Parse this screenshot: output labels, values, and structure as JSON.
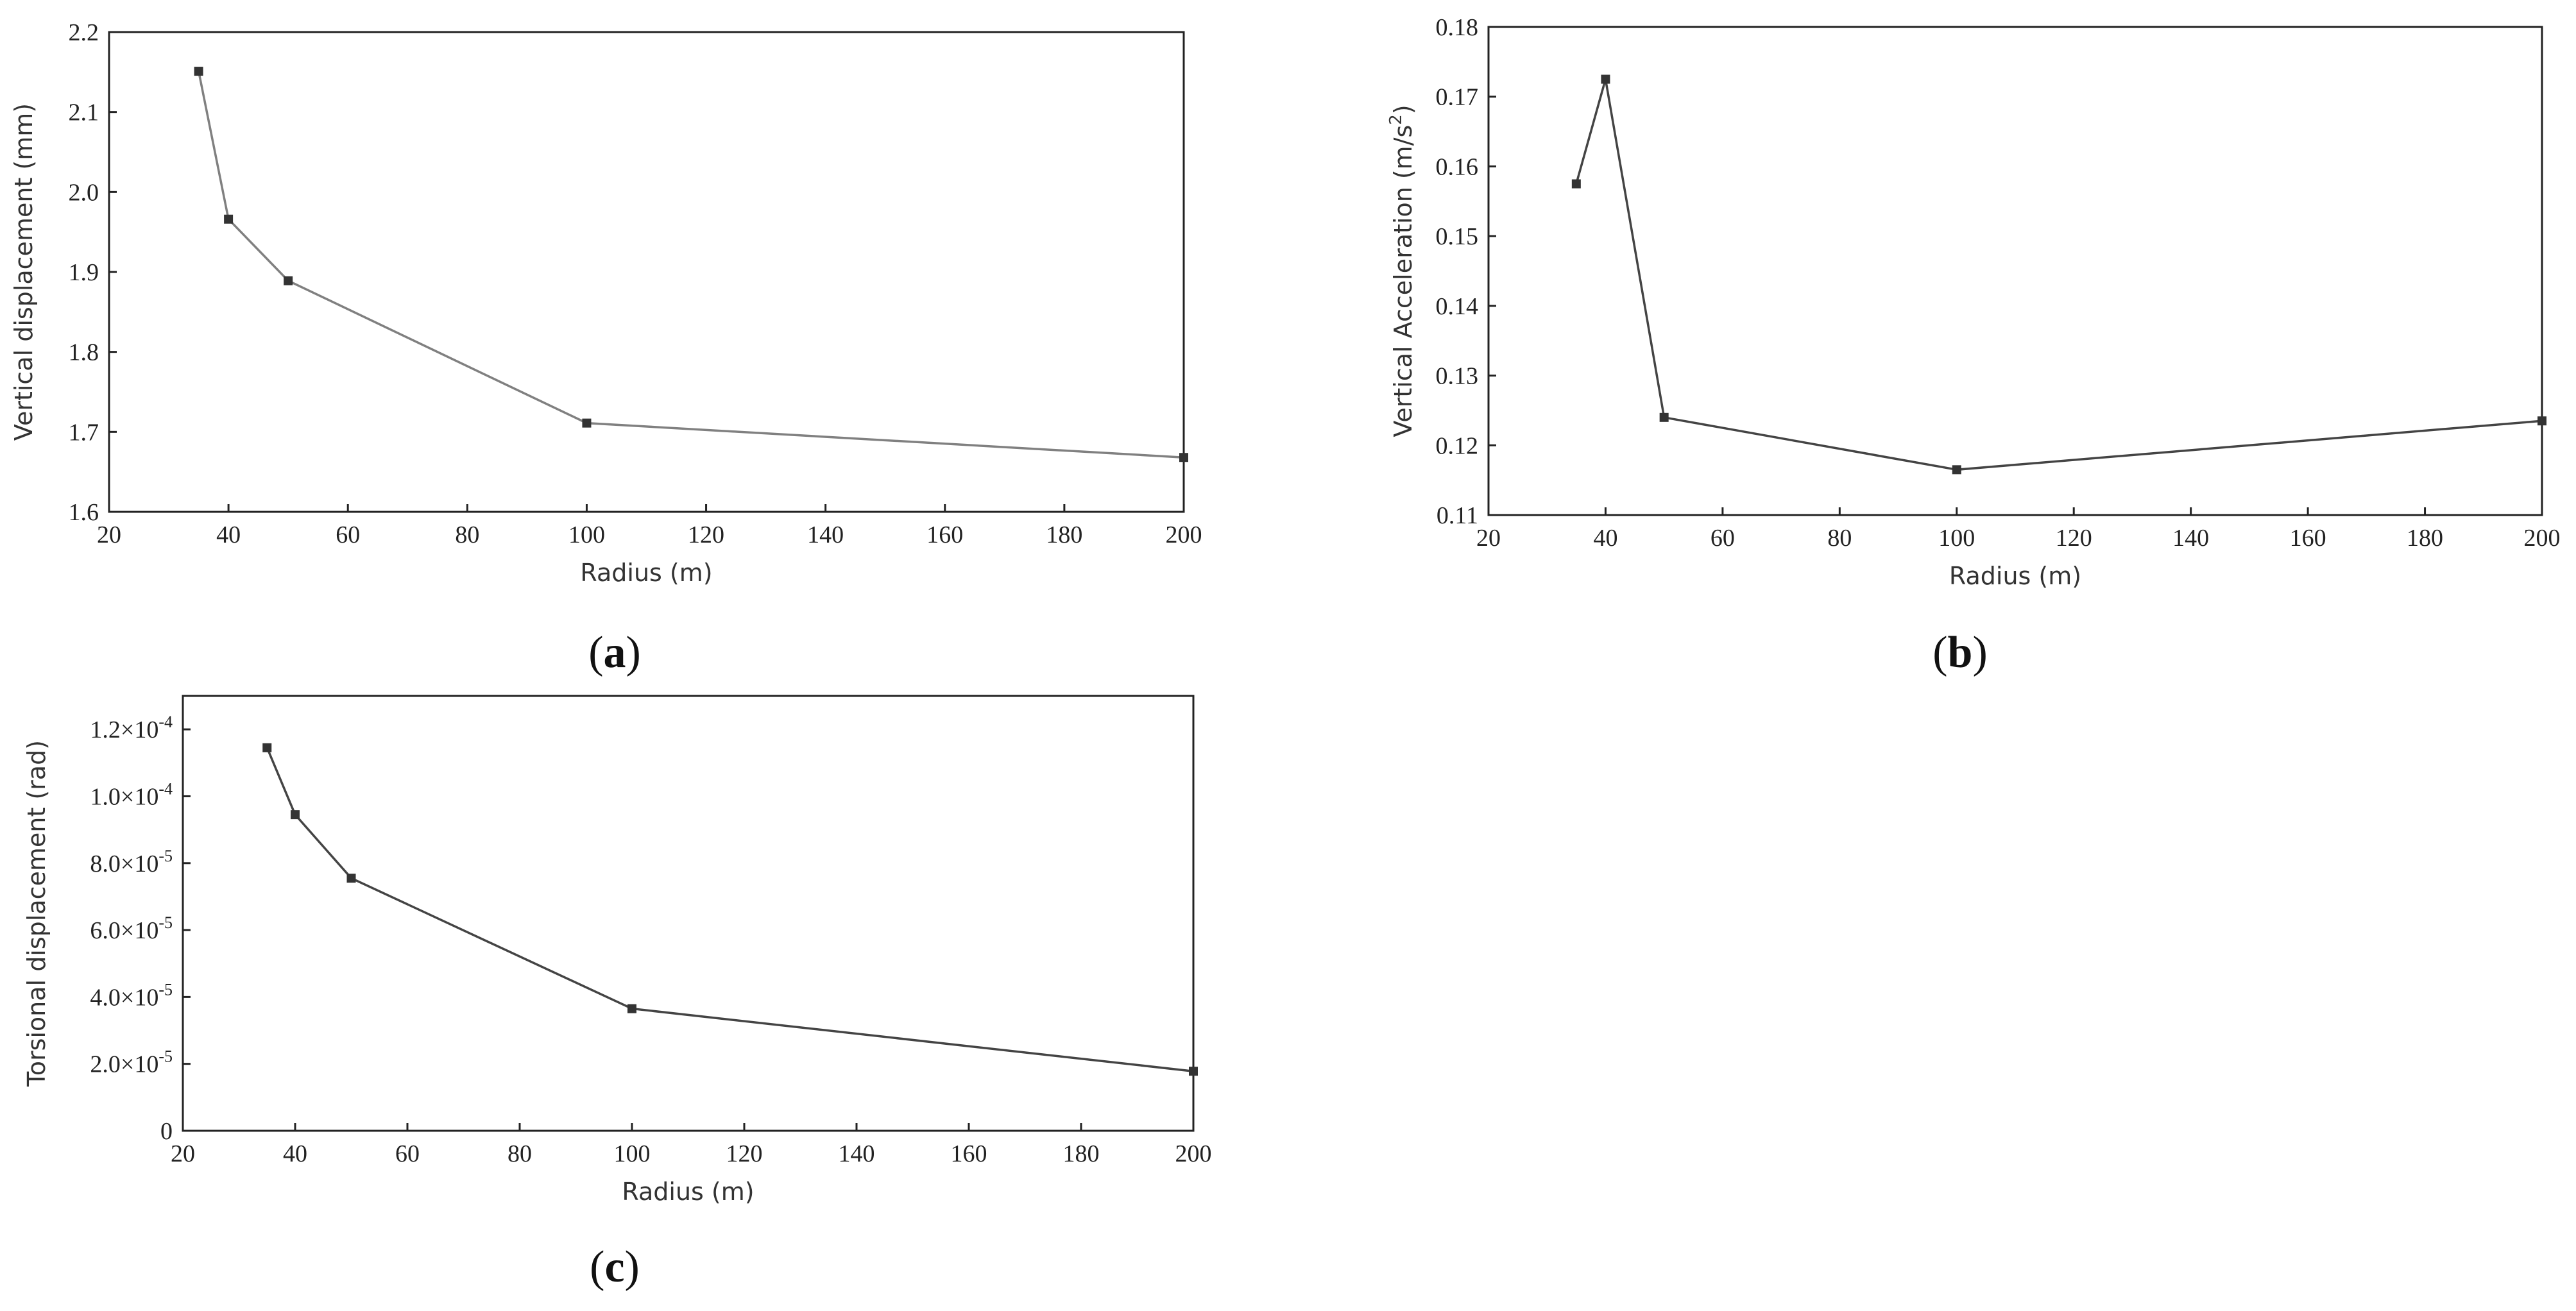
{
  "chart_data": [
    {
      "type": "line",
      "panel": "a",
      "caption_open": "(",
      "caption_letter": "a",
      "caption_close": ")",
      "xlabel": "Radius (m)",
      "ylabel": "Vertical displacement (mm)",
      "xlim": [
        20,
        200
      ],
      "ylim": [
        1.6,
        2.2
      ],
      "xticks": [
        "20",
        "40",
        "60",
        "80",
        "100",
        "120",
        "140",
        "160",
        "180",
        "200"
      ],
      "yticks": [
        "1.6",
        "1.7",
        "1.8",
        "1.9",
        "2.0",
        "2.1",
        "2.2"
      ],
      "series": [
        {
          "x": [
            35,
            40,
            50,
            100,
            200
          ],
          "values": [
            2.151,
            1.966,
            1.889,
            1.711,
            1.668
          ]
        }
      ],
      "line_color": "#808080",
      "marker_color": "#333333",
      "grid": false
    },
    {
      "type": "line",
      "panel": "b",
      "caption_open": "(",
      "caption_letter": "b",
      "caption_close": ")",
      "xlabel": "Radius (m)",
      "ylabel_main": "Vertical Acceleration (m/s",
      "ylabel_sup": "2",
      "ylabel_end": ")",
      "xlim": [
        20,
        200
      ],
      "ylim": [
        0.11,
        0.18
      ],
      "xticks": [
        "20",
        "40",
        "60",
        "80",
        "100",
        "120",
        "140",
        "160",
        "180",
        "200"
      ],
      "yticks": [
        "0.11",
        "0.12",
        "0.13",
        "0.14",
        "0.15",
        "0.16",
        "0.17",
        "0.18"
      ],
      "series": [
        {
          "x": [
            35,
            40,
            50,
            100,
            200
          ],
          "values": [
            0.1575,
            0.1725,
            0.124,
            0.1165,
            0.1235
          ]
        }
      ],
      "line_color": "#444444",
      "marker_color": "#333333",
      "grid": false
    },
    {
      "type": "line",
      "panel": "c",
      "caption_open": "(",
      "caption_letter": "c",
      "caption_close": ")",
      "xlabel": "Radius (m)",
      "ylabel": "Torsional displacement (rad)",
      "xlim": [
        20,
        200
      ],
      "ylim": [
        0,
        0.00013
      ],
      "xticks": [
        "20",
        "40",
        "60",
        "80",
        "100",
        "120",
        "140",
        "160",
        "180",
        "200"
      ],
      "yticks": [
        {
          "value": 0,
          "mant": "0",
          "exp": ""
        },
        {
          "value": 2e-05,
          "mant": "2.0×10",
          "exp": "-5"
        },
        {
          "value": 4e-05,
          "mant": "4.0×10",
          "exp": "-5"
        },
        {
          "value": 6e-05,
          "mant": "6.0×10",
          "exp": "-5"
        },
        {
          "value": 8e-05,
          "mant": "8.0×10",
          "exp": "-5"
        },
        {
          "value": 0.0001,
          "mant": "1.0×10",
          "exp": "-4"
        },
        {
          "value": 0.00012,
          "mant": "1.2×10",
          "exp": "-4"
        }
      ],
      "series": [
        {
          "x": [
            35,
            40,
            50,
            100,
            200
          ],
          "values": [
            0.0001145,
            9.45e-05,
            7.55e-05,
            3.65e-05,
            1.78e-05
          ]
        }
      ],
      "line_color": "#444444",
      "marker_color": "#333333",
      "grid": false
    }
  ]
}
